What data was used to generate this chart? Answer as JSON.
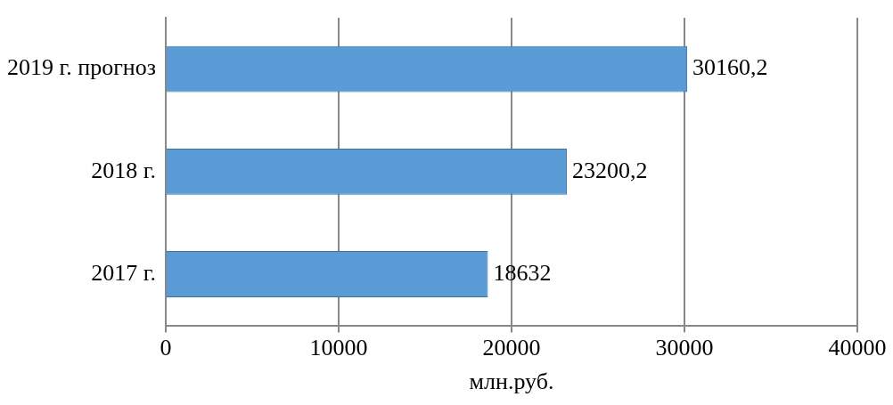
{
  "chart_data": {
    "type": "bar",
    "orientation": "horizontal",
    "categories": [
      "2019 г. прогноз",
      "2018 г.",
      "2017 г."
    ],
    "values": [
      30160.2,
      23200.2,
      18632
    ],
    "value_labels": [
      "30160,2",
      "23200,2",
      "18632"
    ],
    "color": "#5b9bd5",
    "xlabel": "млн.руб.",
    "xlim": [
      0,
      40000
    ],
    "xticks": [
      0,
      10000,
      20000,
      30000,
      40000
    ],
    "grid": "x",
    "legend": false
  }
}
